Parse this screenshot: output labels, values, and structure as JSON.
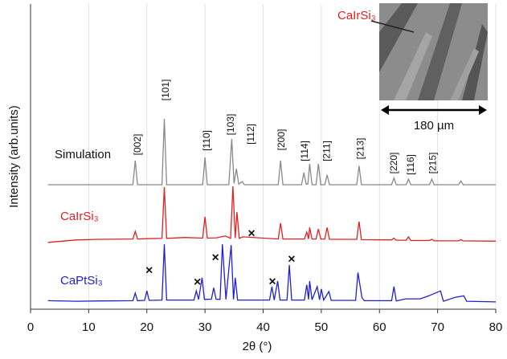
{
  "chart_data": {
    "type": "line",
    "xlabel": "2θ (°)",
    "ylabel": "Intensity (arb.units)",
    "xlim": [
      0,
      80
    ],
    "xticks": [
      0,
      10,
      20,
      30,
      40,
      50,
      60,
      70,
      80
    ],
    "ylim": [
      0,
      100
    ],
    "grid": true,
    "series": [
      {
        "name": "Simulation",
        "color": "#888888",
        "x": [
          3,
          17.6,
          18,
          18.4,
          22.6,
          23,
          23.4,
          29.6,
          30,
          30.4,
          34.1,
          34.6,
          35.0,
          35.4,
          35.8,
          36.4,
          36.8,
          42.6,
          43,
          43.4,
          46.6,
          47,
          47.4,
          47.7,
          48,
          48.4,
          49.1,
          49.5,
          49.9,
          50.6,
          51,
          51.4,
          56.1,
          56.5,
          56.9,
          62.1,
          62.5,
          62.9,
          64.6,
          65,
          65.4,
          68.6,
          69,
          69.4,
          73.6,
          74,
          74.4,
          80
        ],
        "values": [
          40.8,
          40.8,
          48.7,
          40.8,
          40.8,
          62.4,
          40.8,
          40.8,
          49.7,
          40.8,
          40.8,
          55.8,
          41.2,
          46,
          41,
          41.8,
          40.8,
          40.8,
          48.7,
          40.8,
          40.8,
          44.7,
          41,
          41,
          47.6,
          40.8,
          40.8,
          47.6,
          40.8,
          40.8,
          44,
          40.8,
          40.8,
          47,
          40.8,
          40.8,
          43,
          40.8,
          40.8,
          42.6,
          40.8,
          40.8,
          42.6,
          40.8,
          40.8,
          42,
          40.8,
          40.8
        ]
      },
      {
        "name": "CaIrSi₃",
        "color": "#e02020",
        "x": [
          3,
          8,
          12,
          17.6,
          18,
          18.4,
          20,
          22.6,
          23,
          23.4,
          26.5,
          29.6,
          30,
          30.4,
          32,
          33.5,
          34.4,
          34.8,
          35.2,
          35.5,
          35.9,
          36.5,
          42.6,
          43,
          43.4,
          47.1,
          47.5,
          47.8,
          48,
          48.4,
          49.1,
          49.5,
          49.9,
          50.6,
          51,
          51.4,
          56.1,
          56.5,
          56.9,
          62.1,
          62.5,
          62.9,
          64.6,
          65,
          65.4,
          68.6,
          69,
          69.4,
          73.6,
          74,
          74.4,
          80
        ],
        "values": [
          21.9,
          22.7,
          22.9,
          23,
          25.5,
          23,
          23.1,
          23.2,
          40,
          23.2,
          23.5,
          23.3,
          30.3,
          23.3,
          23.4,
          24,
          23.2,
          40.3,
          23.3,
          31.8,
          23.2,
          23.7,
          23,
          28.2,
          23,
          23,
          25.3,
          23,
          26.8,
          23,
          23,
          26.3,
          23,
          23,
          26.8,
          22.9,
          22.9,
          28.7,
          22.8,
          22.7,
          23.3,
          22.6,
          22.6,
          23.7,
          22.5,
          22.5,
          22.9,
          22.4,
          22.4,
          22.8,
          22.4,
          22.3
        ]
      },
      {
        "name": "CaPtSi₃",
        "color": "#2020d0",
        "x": [
          3,
          8,
          12,
          17.6,
          18,
          18.4,
          19.6,
          20,
          20.4,
          22.6,
          23,
          23.4,
          28.1,
          28.5,
          28.9,
          29.5,
          29.9,
          31.1,
          31.5,
          31.9,
          32.6,
          33,
          33.6,
          34.5,
          34.9,
          35.2,
          35.6,
          41.1,
          41.5,
          41.9,
          42.5,
          42.9,
          44.1,
          44.5,
          44.9,
          47.1,
          47.5,
          47.8,
          48,
          48.4,
          49.3,
          49.7,
          50,
          50.4,
          51.3,
          51.7,
          55.9,
          56.3,
          57,
          57.4,
          62.1,
          62.5,
          62.9,
          64.5,
          67,
          68.5,
          70.5,
          71,
          73,
          74.5,
          75,
          80
        ],
        "values": [
          2.8,
          2.6,
          2.7,
          2.8,
          5.3,
          2.8,
          2.9,
          6,
          2.9,
          3,
          21.3,
          3,
          3,
          6,
          3.2,
          10.3,
          3.2,
          3.3,
          7,
          3.3,
          3.2,
          21.3,
          3.2,
          21,
          3.2,
          10.3,
          3,
          3,
          7.4,
          3,
          9.2,
          3,
          3,
          14.5,
          3,
          3,
          8,
          3.2,
          9.2,
          3.1,
          7.4,
          3.1,
          6.6,
          3,
          5.8,
          2.9,
          2.9,
          12,
          3.8,
          2.8,
          2.8,
          7.4,
          2.7,
          3.4,
          3.4,
          4.4,
          6,
          2.6,
          3.9,
          4.4,
          2.6,
          2.4
        ]
      }
    ],
    "peak_labels": [
      {
        "x": 18.5,
        "label": "[002]"
      },
      {
        "x": 23.3,
        "label": "[101]"
      },
      {
        "x": 30.4,
        "label": "[110]"
      },
      {
        "x": 34.5,
        "label": "[103]"
      },
      {
        "x": 38,
        "label": "[112]"
      },
      {
        "x": 43.2,
        "label": "[200]"
      },
      {
        "x": 47.2,
        "label": "[114]"
      },
      {
        "x": 51,
        "label": "[211]"
      },
      {
        "x": 56.8,
        "label": "[213]"
      },
      {
        "x": 62.6,
        "label": "[220]"
      },
      {
        "x": 65.5,
        "label": "[116]"
      },
      {
        "x": 69.3,
        "label": "[215]"
      }
    ],
    "impurity_marks": {
      "label": "×",
      "x": [
        20.4,
        28.7,
        31.8,
        38,
        41.6,
        44.9
      ],
      "values": [
        12.6,
        8.7,
        16.8,
        24.7,
        8.9,
        16.3
      ]
    },
    "inset": {
      "label": "CaIrSi₃",
      "scale": "180 µm"
    }
  }
}
